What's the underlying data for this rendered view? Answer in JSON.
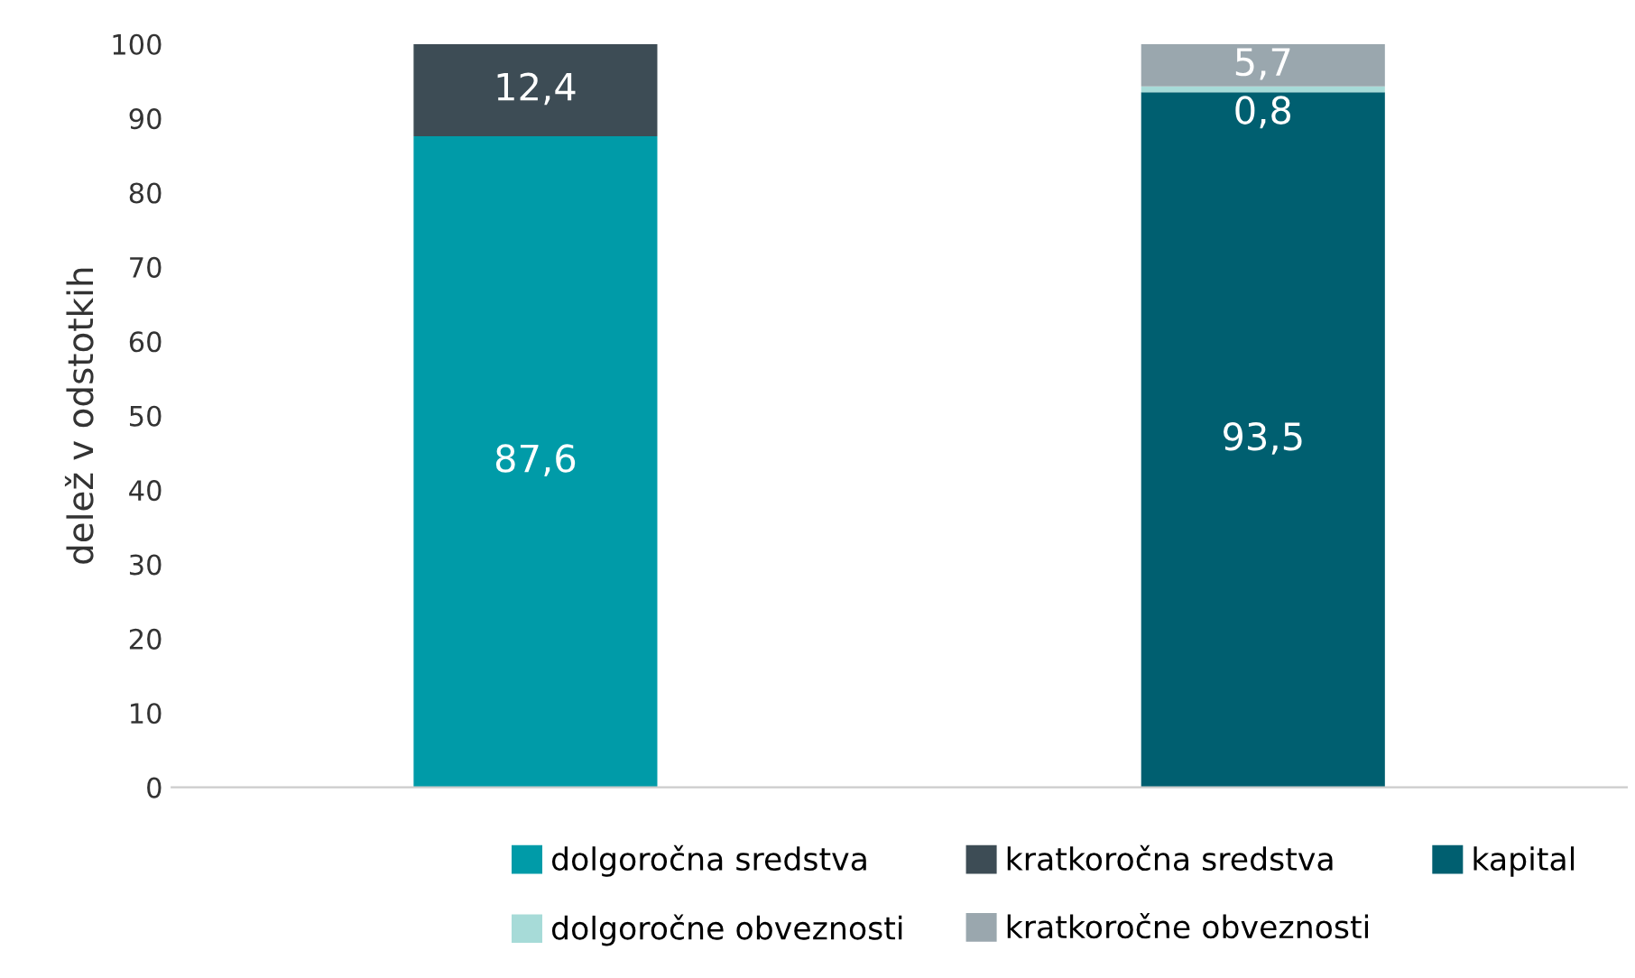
{
  "chart_data": {
    "type": "bar",
    "stacked": true,
    "ylabel": "delež v odstotkih",
    "categories": [
      null,
      null
    ],
    "series": [
      {
        "name": "dolgoročna sredstva",
        "color": "#009ba8",
        "values": [
          87.6,
          null
        ],
        "value_labels": [
          "87,6",
          null
        ]
      },
      {
        "name": "kratkoročna sredstva",
        "color": "#3d4c55",
        "values": [
          12.4,
          null
        ],
        "value_labels": [
          "12,4",
          null
        ]
      },
      {
        "name": "kapital",
        "color": "#005f70",
        "values": [
          null,
          93.5
        ],
        "value_labels": [
          null,
          "93,5"
        ]
      },
      {
        "name": "dolgoročne obveznosti",
        "color": "#a7dbd8",
        "values": [
          null,
          0.8
        ],
        "value_labels": [
          null,
          "0,8"
        ]
      },
      {
        "name": "kratkoročne obveznosti",
        "color": "#9aa7ae",
        "values": [
          null,
          5.7
        ],
        "value_labels": [
          null,
          "5,7"
        ]
      }
    ],
    "ylim": [
      0,
      100
    ],
    "yticks": [
      0,
      10,
      20,
      30,
      40,
      50,
      60,
      70,
      80,
      90,
      100
    ],
    "grid": false,
    "legend": "bottom"
  }
}
